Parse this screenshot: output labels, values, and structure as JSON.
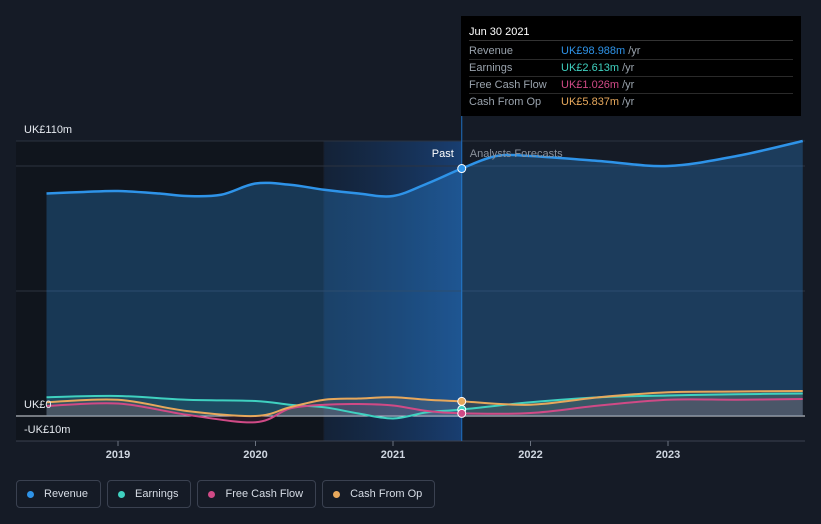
{
  "tooltip": {
    "date": "Jun 30 2021",
    "rows": [
      {
        "label": "Revenue",
        "value": "UK£98.988m",
        "unit": "/yr",
        "color": "#2e93e8"
      },
      {
        "label": "Earnings",
        "value": "UK£2.613m",
        "unit": "/yr",
        "color": "#3fd1c0"
      },
      {
        "label": "Free Cash Flow",
        "value": "UK£1.026m",
        "unit": "/yr",
        "color": "#d04a86"
      },
      {
        "label": "Cash From Op",
        "value": "UK£5.837m",
        "unit": "/yr",
        "color": "#e7a85c"
      }
    ]
  },
  "legend": [
    {
      "label": "Revenue",
      "color": "#2e93e8"
    },
    {
      "label": "Earnings",
      "color": "#3fd1c0"
    },
    {
      "label": "Free Cash Flow",
      "color": "#d04a86"
    },
    {
      "label": "Cash From Op",
      "color": "#e7a85c"
    }
  ],
  "chart_data": {
    "type": "line",
    "ylim": [
      -10,
      110
    ],
    "xlim": [
      2018.4,
      2023.98
    ],
    "y_tick_labels": [
      "UK£110m",
      "UK£0",
      "-UK£10m"
    ],
    "y_tick_values": [
      110,
      0,
      -10
    ],
    "x_ticks": [
      2019,
      2020,
      2021,
      2022,
      2023
    ],
    "x_tick_labels": [
      "2019",
      "2020",
      "2021",
      "2022",
      "2023"
    ],
    "highlight_range": [
      2020.5,
      2021.5
    ],
    "divider_x": 2021.5,
    "past_label": "Past",
    "forecast_label": "Analysts Forecasts",
    "grid": true,
    "series": [
      {
        "name": "Revenue",
        "color": "#2e93e8",
        "fill": true,
        "x": [
          2018.48,
          2018.75,
          2019.0,
          2019.3,
          2019.5,
          2019.75,
          2020.0,
          2020.25,
          2020.5,
          2020.75,
          2021.0,
          2021.25,
          2021.5,
          2021.75,
          2022.0,
          2022.5,
          2023.0,
          2023.5,
          2023.98
        ],
        "y": [
          89,
          89.6,
          90,
          89,
          88,
          88.5,
          93,
          92.5,
          90.5,
          89,
          88,
          93,
          98.99,
          104,
          104,
          102,
          100,
          104,
          110
        ]
      },
      {
        "name": "Earnings",
        "color": "#3fd1c0",
        "x": [
          2018.48,
          2019.0,
          2019.5,
          2020.0,
          2020.25,
          2020.5,
          2020.75,
          2021.0,
          2021.25,
          2021.5,
          2022.0,
          2022.5,
          2023.0,
          2023.5,
          2023.98
        ],
        "y": [
          7.5,
          8,
          6.5,
          6,
          4.5,
          3.5,
          1,
          -1,
          1.5,
          2.61,
          5.5,
          7.5,
          8.2,
          8.7,
          9
        ]
      },
      {
        "name": "Free Cash Flow",
        "color": "#d04a86",
        "x": [
          2018.48,
          2019.0,
          2019.5,
          2020.0,
          2020.25,
          2020.5,
          2020.75,
          2021.0,
          2021.25,
          2021.5,
          2022.0,
          2022.5,
          2023.0,
          2023.5,
          2023.98
        ],
        "y": [
          4,
          5,
          0.5,
          -2.5,
          3,
          4.5,
          4.8,
          4.2,
          2,
          1.03,
          1.2,
          4.2,
          6.5,
          6.5,
          6.8
        ]
      },
      {
        "name": "Cash From Op",
        "color": "#e7a85c",
        "x": [
          2018.48,
          2019.0,
          2019.5,
          2020.0,
          2020.25,
          2020.5,
          2020.75,
          2021.0,
          2021.25,
          2021.5,
          2022.0,
          2022.5,
          2023.0,
          2023.5,
          2023.98
        ],
        "y": [
          5.5,
          6.5,
          2,
          0,
          3.5,
          6.5,
          7,
          7.5,
          6.5,
          5.84,
          4.5,
          7.5,
          9.5,
          9.8,
          10
        ]
      }
    ]
  }
}
